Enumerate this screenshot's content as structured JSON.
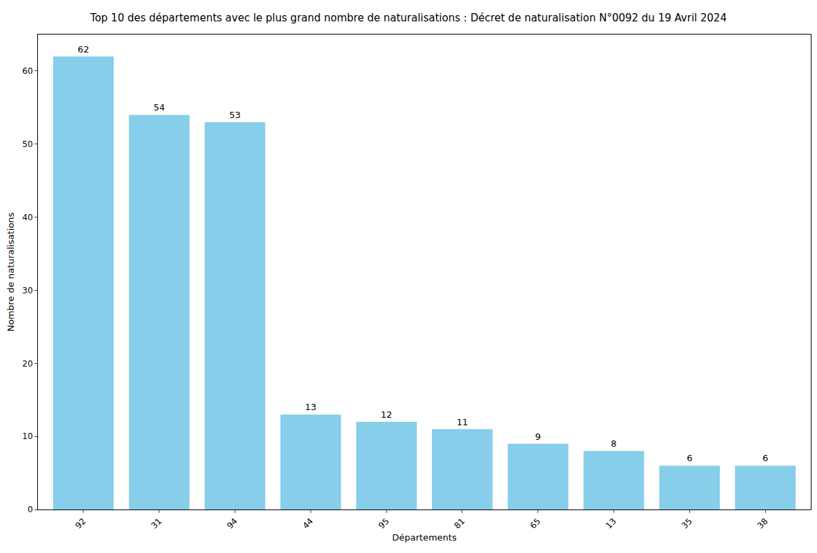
{
  "chart_data": {
    "type": "bar",
    "title": "Top 10 des départements avec le plus grand nombre de naturalisations : Décret de naturalisation N°0092 du 19 Avril 2024",
    "x_label": "Départements",
    "y_label": "Nombre de naturalisations",
    "categories": [
      "92",
      "31",
      "94",
      "44",
      "95",
      "81",
      "65",
      "13",
      "35",
      "38"
    ],
    "values": [
      62,
      54,
      53,
      13,
      12,
      11,
      9,
      8,
      6,
      6
    ],
    "color": "#87ceeb",
    "ylim": [
      0,
      65
    ],
    "yticks": [
      0,
      10,
      20,
      30,
      40,
      50,
      60
    ],
    "grid": false,
    "data_labels": true
  }
}
